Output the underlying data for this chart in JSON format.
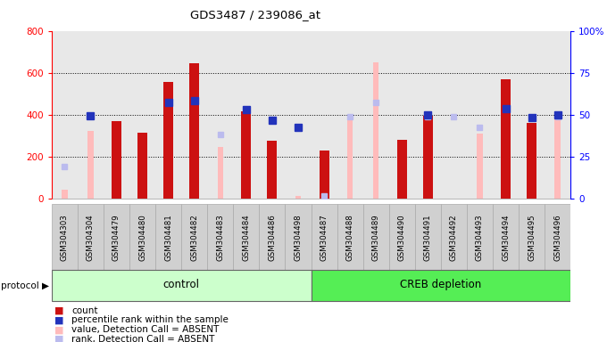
{
  "title": "GDS3487 / 239086_at",
  "samples": [
    "GSM304303",
    "GSM304304",
    "GSM304479",
    "GSM304480",
    "GSM304481",
    "GSM304482",
    "GSM304483",
    "GSM304484",
    "GSM304486",
    "GSM304498",
    "GSM304487",
    "GSM304488",
    "GSM304489",
    "GSM304490",
    "GSM304491",
    "GSM304492",
    "GSM304493",
    "GSM304494",
    "GSM304495",
    "GSM304496"
  ],
  "count": [
    null,
    null,
    370,
    315,
    555,
    645,
    null,
    415,
    275,
    null,
    230,
    null,
    null,
    280,
    395,
    null,
    null,
    570,
    360,
    null
  ],
  "percentile_rank": [
    null,
    395,
    null,
    null,
    460,
    465,
    null,
    425,
    375,
    340,
    null,
    null,
    null,
    null,
    400,
    null,
    null,
    430,
    385,
    400
  ],
  "absent_value": [
    40,
    320,
    null,
    null,
    null,
    null,
    245,
    null,
    null,
    10,
    null,
    380,
    650,
    null,
    null,
    null,
    310,
    null,
    null,
    400
  ],
  "absent_rank": [
    150,
    null,
    null,
    null,
    null,
    null,
    305,
    null,
    null,
    null,
    10,
    390,
    460,
    null,
    390,
    390,
    340,
    null,
    null,
    390
  ],
  "control_count": 10,
  "group_labels": [
    "control",
    "CREB depletion"
  ],
  "ylim_left": [
    0,
    800
  ],
  "ylim_right": [
    0,
    100
  ],
  "yticks_left": [
    0,
    200,
    400,
    600,
    800
  ],
  "yticks_right": [
    0,
    25,
    50,
    75,
    100
  ],
  "ytick_labels_right": [
    "0",
    "25",
    "50",
    "75",
    "100%"
  ],
  "color_count": "#cc1111",
  "color_percentile": "#2233bb",
  "color_absent_value": "#ffbbbb",
  "color_absent_rank": "#bbbbee",
  "background_plot": "#e8e8e8",
  "background_fig": "#ffffff",
  "protocol_label": "protocol",
  "legend_items": [
    {
      "color": "#cc1111",
      "label": "count"
    },
    {
      "color": "#2233bb",
      "label": "percentile rank within the sample"
    },
    {
      "color": "#ffbbbb",
      "label": "value, Detection Call = ABSENT"
    },
    {
      "color": "#bbbbee",
      "label": "rank, Detection Call = ABSENT"
    }
  ]
}
